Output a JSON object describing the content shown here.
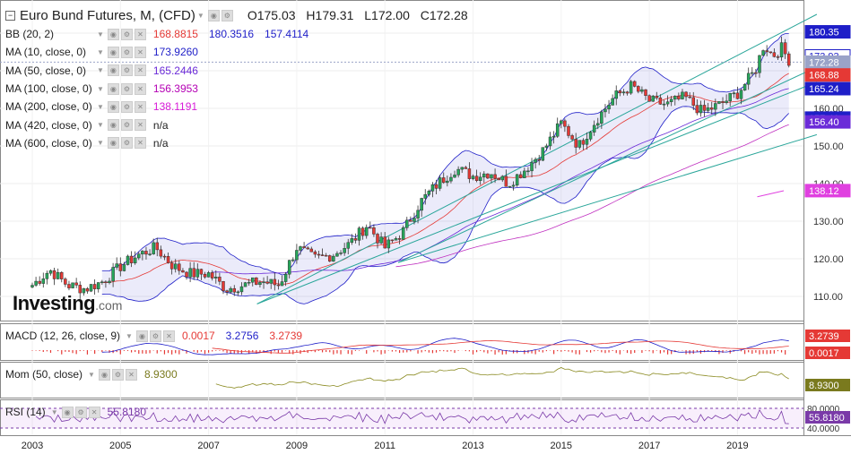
{
  "header": {
    "title": "Euro Bund Futures, M, (CFD)",
    "open": "O175.03",
    "high": "H179.31",
    "low": "L172.00",
    "close": "C172.28"
  },
  "indicators": [
    {
      "label": "BB (20, 2)",
      "values": [
        "168.8815",
        "180.3516",
        "157.4114"
      ],
      "colors": [
        "#e53935",
        "#1e1ec8",
        "#1e1ec8"
      ]
    },
    {
      "label": "MA (10, close, 0)",
      "values": [
        "173.9260"
      ],
      "colors": [
        "#1e1ec8"
      ]
    },
    {
      "label": "MA (50, close, 0)",
      "values": [
        "165.2446"
      ],
      "colors": [
        "#6b2bd8"
      ]
    },
    {
      "label": "MA (100, close, 0)",
      "values": [
        "156.3953"
      ],
      "colors": [
        "#b400b4"
      ]
    },
    {
      "label": "MA (200, close, 0)",
      "values": [
        "138.1191"
      ],
      "colors": [
        "#d81bd8"
      ]
    },
    {
      "label": "MA (420, close, 0)",
      "values": [
        "n/a"
      ],
      "colors": [
        "#222222"
      ]
    },
    {
      "label": "MA (600, close, 0)",
      "values": [
        "n/a"
      ],
      "colors": [
        "#222222"
      ]
    }
  ],
  "macd": {
    "label": "MACD (12, 26, close, 9)",
    "values": [
      "0.0017",
      "3.2756",
      "3.2739"
    ],
    "colors": [
      "#e53935",
      "#1e1ec8",
      "#e53935"
    ]
  },
  "mom": {
    "label": "Mom (50, close)",
    "value": "8.9300"
  },
  "rsi": {
    "label": "RSI (14)",
    "value": "55.8180"
  },
  "logo": {
    "name": "Investing",
    "domain": ".com"
  },
  "price_tags": [
    {
      "text": "180.35",
      "value": 180.35,
      "bg": "#1e1ec8",
      "fg": "#ffffff"
    },
    {
      "text": "173.93",
      "value": 173.93,
      "bg": "#ffffff",
      "fg": "#1e1ec8"
    },
    {
      "text": "172.28",
      "value": 172.28,
      "bg": "#9aa3c8",
      "fg": "#ffffff"
    },
    {
      "text": "168.88",
      "value": 168.88,
      "bg": "#e53935",
      "fg": "#ffffff"
    },
    {
      "text": "165.24",
      "value": 165.24,
      "bg": "#1e1ec8",
      "fg": "#ffffff"
    },
    {
      "text": "157.41",
      "value": 157.41,
      "bg": "#1e1ec8",
      "fg": "#ffffff"
    },
    {
      "text": "156.40",
      "value": 156.4,
      "bg": "#6b2bd8",
      "fg": "#ffffff"
    },
    {
      "text": "138.12",
      "value": 138.12,
      "bg": "#e040e0",
      "fg": "#ffffff"
    }
  ],
  "pane_tags": {
    "macd": [
      {
        "text": "3.2739",
        "bg": "#e53935",
        "fg": "#ffffff"
      },
      {
        "text": "0.0017",
        "bg": "#e53935",
        "fg": "#ffffff"
      }
    ],
    "mom": [
      {
        "text": "8.9300",
        "bg": "#7a7a1e",
        "fg": "#ffffff"
      }
    ],
    "rsi": [
      {
        "text": "55.8180",
        "bg": "#7a3aa8",
        "fg": "#ffffff"
      }
    ]
  },
  "colors": {
    "up": "#26a65b",
    "down": "#e53935",
    "bb": "#1e1ec8",
    "bb_fill": "rgba(120,120,220,0.15)",
    "trend": "#2aa69a"
  },
  "chart_data": {
    "type": "candlestick",
    "timeframe": "monthly",
    "x_ticks": [
      "2003",
      "2005",
      "2007",
      "2009",
      "2011",
      "2013",
      "2015",
      "2017",
      "2019"
    ],
    "y_ticks": [
      110,
      120,
      130,
      140,
      150,
      160,
      170,
      180
    ],
    "rsi_ticks": [
      "80.0000",
      "40.0000"
    ],
    "close_path": [
      [
        2003.0,
        113
      ],
      [
        2003.4,
        117
      ],
      [
        2003.8,
        113
      ],
      [
        2004.2,
        112
      ],
      [
        2004.6,
        114
      ],
      [
        2005.0,
        118
      ],
      [
        2005.4,
        121
      ],
      [
        2005.8,
        123
      ],
      [
        2006.2,
        118
      ],
      [
        2006.6,
        116
      ],
      [
        2007.0,
        116
      ],
      [
        2007.4,
        112
      ],
      [
        2007.8,
        113
      ],
      [
        2008.2,
        114
      ],
      [
        2008.6,
        113
      ],
      [
        2009.0,
        123
      ],
      [
        2009.4,
        120
      ],
      [
        2009.8,
        121
      ],
      [
        2010.2,
        124
      ],
      [
        2010.6,
        129
      ],
      [
        2011.0,
        123
      ],
      [
        2011.4,
        127
      ],
      [
        2011.8,
        135
      ],
      [
        2012.2,
        140
      ],
      [
        2012.6,
        144
      ],
      [
        2013.0,
        142
      ],
      [
        2013.4,
        143
      ],
      [
        2013.8,
        140
      ],
      [
        2014.2,
        144
      ],
      [
        2014.6,
        149
      ],
      [
        2015.0,
        156
      ],
      [
        2015.4,
        150
      ],
      [
        2015.8,
        157
      ],
      [
        2016.2,
        163
      ],
      [
        2016.6,
        166
      ],
      [
        2017.0,
        162
      ],
      [
        2017.4,
        161
      ],
      [
        2017.8,
        163
      ],
      [
        2018.2,
        159
      ],
      [
        2018.6,
        161
      ],
      [
        2019.0,
        164
      ],
      [
        2019.4,
        170
      ],
      [
        2019.6,
        177
      ],
      [
        2019.8,
        174
      ],
      [
        2020.0,
        176
      ],
      [
        2020.2,
        172.28
      ]
    ],
    "candles": {
      "open": "175.03",
      "high": "179.31",
      "low": "172.00",
      "close": "172.28"
    }
  }
}
